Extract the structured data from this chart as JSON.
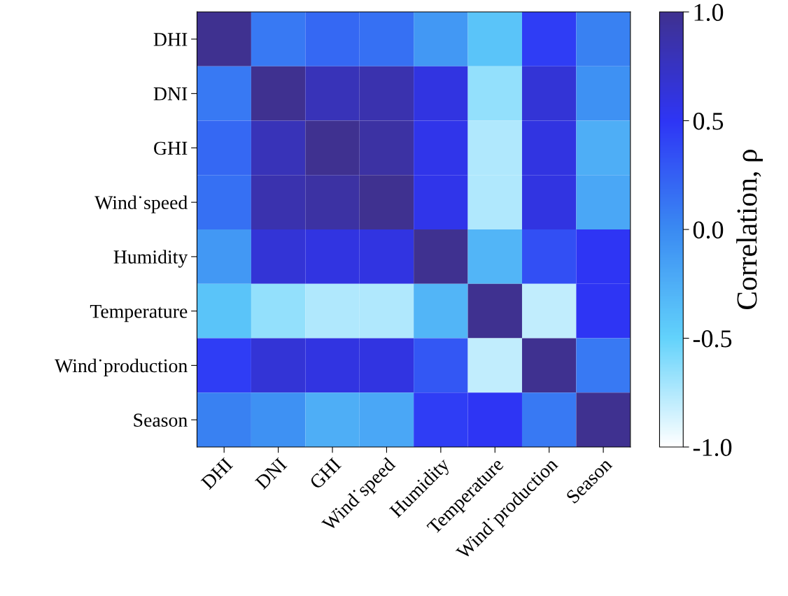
{
  "chart_data": {
    "type": "heatmap",
    "categories": [
      "DHI",
      "DNI",
      "GHI",
      "Wind˙speed",
      "Humidity",
      "Temperature",
      "Wind˙production",
      "Season"
    ],
    "y_categories": [
      "DHI",
      "DNI",
      "GHI",
      "Wind˙speed",
      "Humidity",
      "Temperature",
      "Wind˙production",
      "Season"
    ],
    "cells": [
      [
        1.0,
        0.1,
        0.2,
        0.15,
        -0.1,
        -0.4,
        0.45,
        0.05
      ],
      [
        0.1,
        1.0,
        0.8,
        0.85,
        0.6,
        -0.65,
        0.65,
        -0.05
      ],
      [
        0.2,
        0.8,
        1.0,
        0.9,
        0.55,
        -0.75,
        0.6,
        -0.25
      ],
      [
        0.15,
        0.85,
        0.9,
        1.0,
        0.55,
        -0.75,
        0.6,
        -0.2
      ],
      [
        -0.1,
        0.65,
        0.6,
        0.6,
        1.0,
        -0.3,
        0.35,
        0.5
      ],
      [
        -0.4,
        -0.65,
        -0.75,
        -0.75,
        -0.3,
        1.0,
        -0.8,
        0.5
      ],
      [
        0.45,
        0.65,
        0.6,
        0.6,
        0.3,
        -0.8,
        1.0,
        0.1
      ],
      [
        0.05,
        -0.05,
        -0.25,
        -0.2,
        0.45,
        0.5,
        0.1,
        1.0
      ]
    ],
    "colors": [
      "#ffffff",
      "#62d2fb",
      "#3a8af2",
      "#2e35f5",
      "#3f3190"
    ],
    "clabel": "Correlation, ρ",
    "clim": [
      -1.0,
      1.0
    ],
    "cticks": [
      {
        "value": -1.0,
        "label": "-1.0"
      },
      {
        "value": -0.5,
        "label": "-0.5"
      },
      {
        "value": 0.0,
        "label": "0.0"
      },
      {
        "value": 0.5,
        "label": "0.5"
      },
      {
        "value": 1.0,
        "label": "1.0"
      }
    ]
  }
}
